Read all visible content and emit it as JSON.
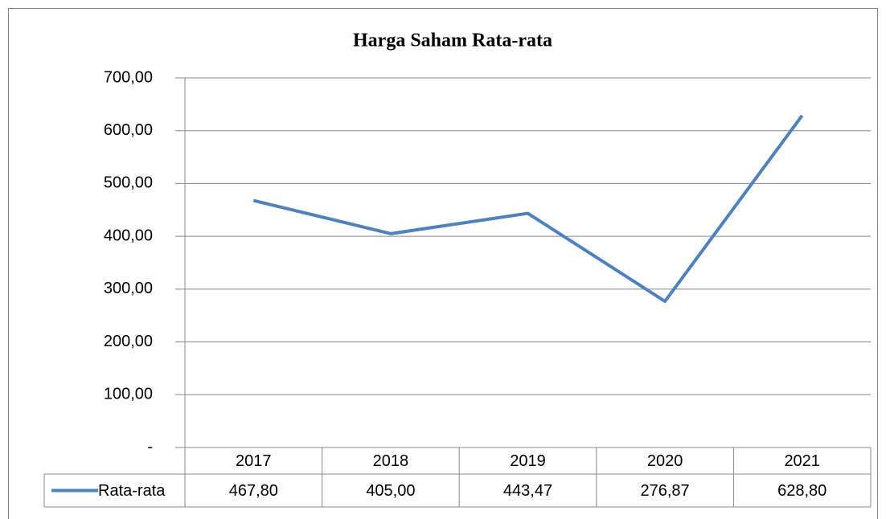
{
  "chart_data": {
    "type": "line",
    "title": "Harga Saham Rata-rata",
    "categories": [
      "2017",
      "2018",
      "2019",
      "2020",
      "2021"
    ],
    "series": [
      {
        "name": "Rata-rata",
        "color": "#4f81bd",
        "values": [
          467.8,
          405.0,
          443.47,
          276.87,
          628.8
        ],
        "value_labels": [
          "467,80",
          "405,00",
          "443,47",
          "276,87",
          "628,80"
        ]
      }
    ],
    "ylim": [
      0,
      700
    ],
    "yticks": [
      {
        "value": 0,
        "label": "-"
      },
      {
        "value": 100,
        "label": "100,00"
      },
      {
        "value": 200,
        "label": "200,00"
      },
      {
        "value": 300,
        "label": "300,00"
      },
      {
        "value": 400,
        "label": "400,00"
      },
      {
        "value": 500,
        "label": "500,00"
      },
      {
        "value": 600,
        "label": "600,00"
      },
      {
        "value": 700,
        "label": "700,00"
      }
    ],
    "grid": true,
    "legend": "table"
  }
}
